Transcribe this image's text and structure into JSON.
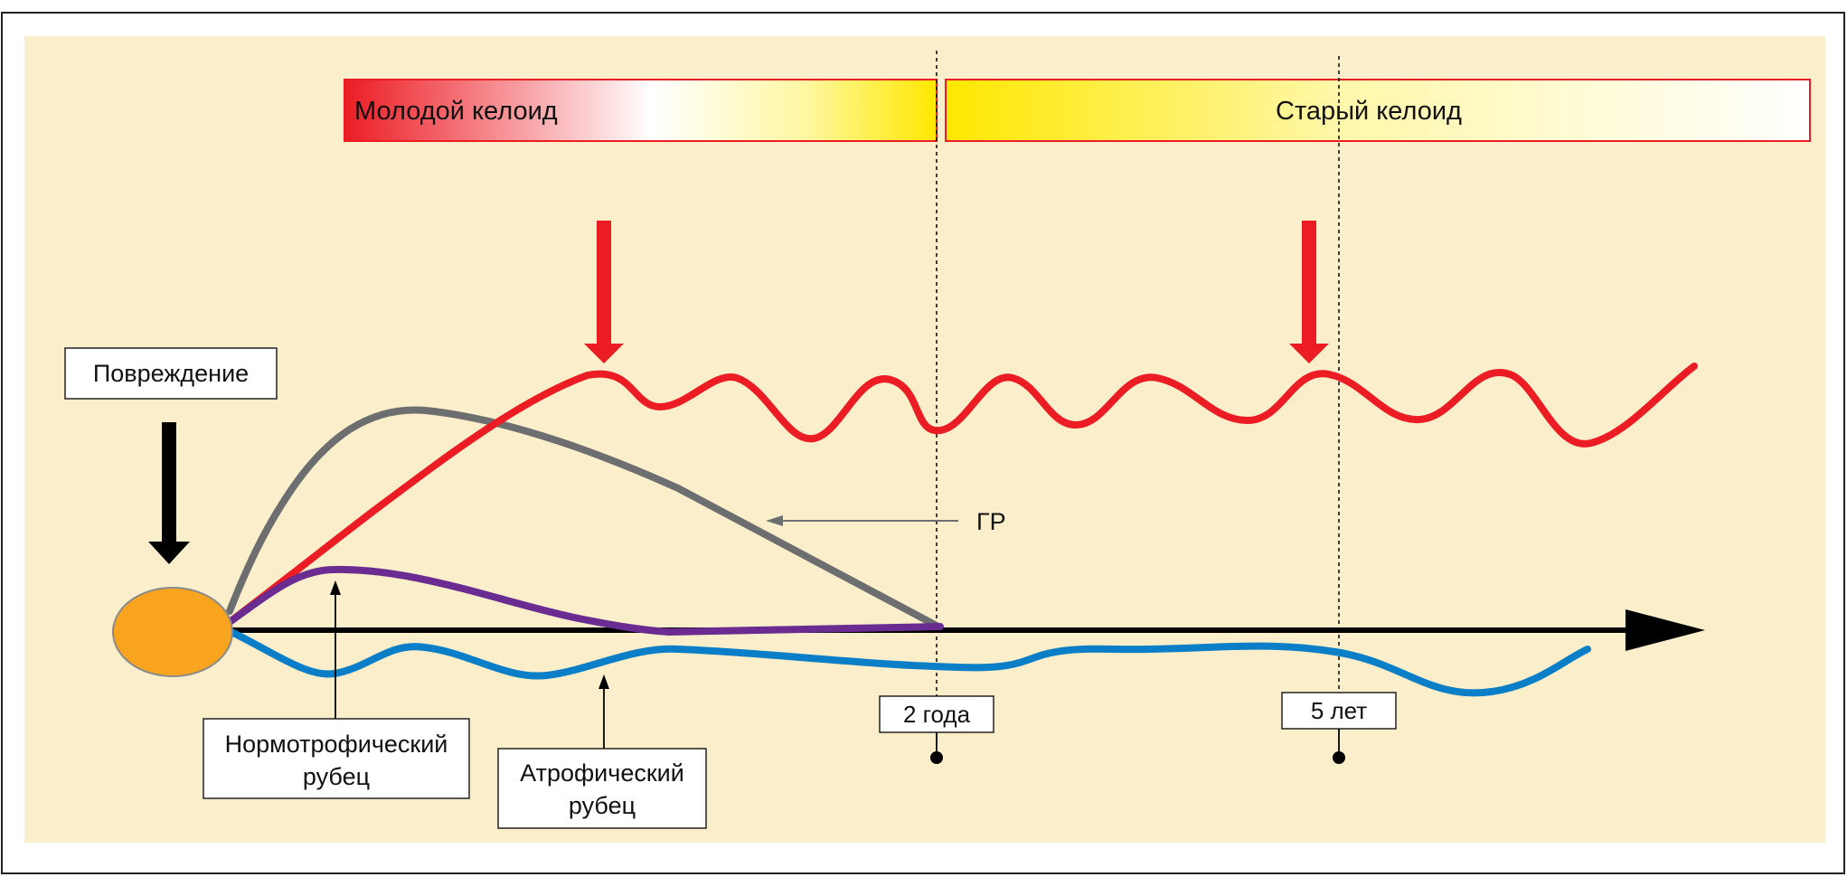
{
  "labels": {
    "young_keloid": "Молодой келоид",
    "old_keloid": "Старый келоид",
    "injury": "Повреждение",
    "hr": "ГР",
    "normotrophic": [
      "Нормотрофический",
      "рубец"
    ],
    "atrophic": [
      "Атрофический",
      "рубец"
    ],
    "two_years": "2 года",
    "five_years": "5 лет"
  },
  "colors": {
    "background": "#fbeecb",
    "keloid_red": "#ec1c24",
    "hypertrophic_gray": "#6d6e70",
    "normotrophic_purple": "#6b2c91",
    "atrophic_blue": "#0a7ec7",
    "injury_orange": "#f9a41e",
    "young_keloid_gradient": [
      "#ec1c24",
      "#ffffff",
      "#fff7a0",
      "#ffe800"
    ],
    "old_keloid_gradient": [
      "#ffe800",
      "#fff7a8",
      "#ffffff"
    ]
  },
  "icons": {
    "time_axis": "arrow-right-icon",
    "injury_marker": "arrow-down-icon",
    "keloid_markers": "arrow-down-icon"
  }
}
